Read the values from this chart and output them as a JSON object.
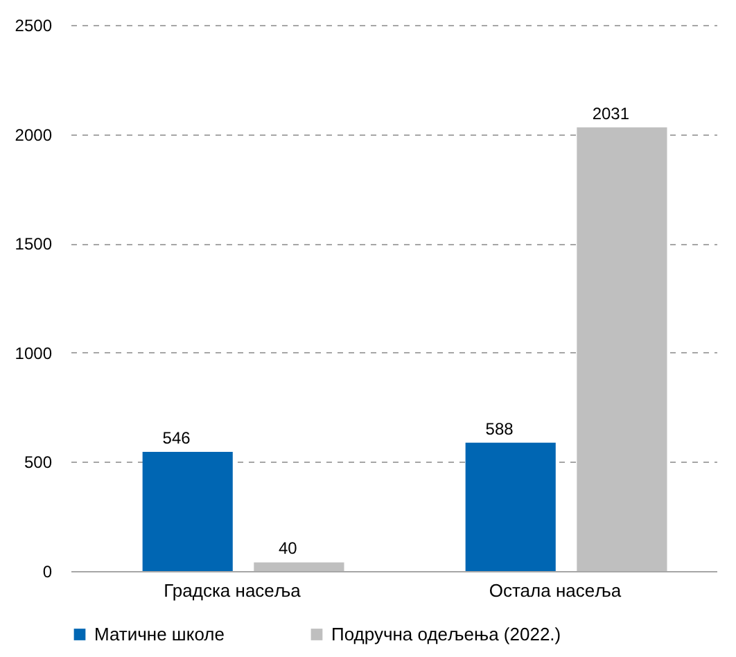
{
  "chart_data": {
    "type": "bar",
    "categories": [
      "Градска насеља",
      "Остала насеља"
    ],
    "series": [
      {
        "name": "Матичне школе",
        "color": "#0066b3",
        "values": [
          546,
          588
        ]
      },
      {
        "name": "Подручна одељења (2022.)",
        "color": "#bfbfbf",
        "values": [
          40,
          2031
        ]
      }
    ],
    "ylim": [
      0,
      2500
    ],
    "yticks": [
      0,
      500,
      1000,
      1500,
      2000,
      2500
    ],
    "grid": "y",
    "legend": "bottom",
    "data_labels": true
  }
}
